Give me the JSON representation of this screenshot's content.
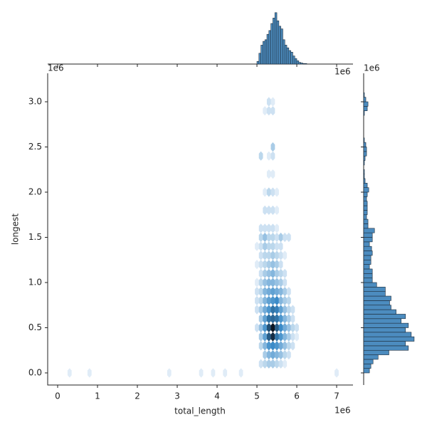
{
  "chart_data": {
    "type": "hexbin",
    "x_label": "total_length",
    "y_label": "longest",
    "x_offset_label": "1e6",
    "y_offset_label": "1e6",
    "xlim": [
      -0.25,
      7.41
    ],
    "ylim": [
      -0.134,
      3.315
    ],
    "xticks": [
      0,
      1,
      2,
      3,
      4,
      5,
      6,
      7
    ],
    "yticks": [
      {
        "value": 0,
        "label": "0.0"
      },
      {
        "value": 0.5,
        "label": "0.5"
      },
      {
        "value": 1,
        "label": "1.0"
      },
      {
        "value": 1.5,
        "label": "1.5"
      },
      {
        "value": 2,
        "label": "2.0"
      },
      {
        "value": 2.5,
        "label": "2.5"
      },
      {
        "value": 3,
        "label": "3.0"
      }
    ],
    "cmap": [
      "#f2f7fc",
      "#3b8bc8",
      "#0b1623"
    ],
    "hexbins": [
      [
        5.1,
        0.1,
        2
      ],
      [
        5.2,
        0.1,
        3
      ],
      [
        5.3,
        0.1,
        4
      ],
      [
        5.4,
        0.1,
        4
      ],
      [
        5.5,
        0.1,
        3
      ],
      [
        5.6,
        0.1,
        2
      ],
      [
        5.7,
        0.1,
        1
      ],
      [
        5.2,
        0.2,
        4
      ],
      [
        5.3,
        0.2,
        6
      ],
      [
        5.4,
        0.2,
        7
      ],
      [
        5.5,
        0.2,
        6
      ],
      [
        5.6,
        0.2,
        5
      ],
      [
        5.7,
        0.2,
        3
      ],
      [
        5.8,
        0.2,
        2
      ],
      [
        5.1,
        0.3,
        3
      ],
      [
        5.2,
        0.3,
        6
      ],
      [
        5.3,
        0.3,
        9
      ],
      [
        5.4,
        0.3,
        10
      ],
      [
        5.5,
        0.3,
        9
      ],
      [
        5.6,
        0.3,
        7
      ],
      [
        5.7,
        0.3,
        5
      ],
      [
        5.8,
        0.3,
        3
      ],
      [
        5.9,
        0.3,
        2
      ],
      [
        5.1,
        0.4,
        4
      ],
      [
        5.2,
        0.4,
        8
      ],
      [
        5.3,
        0.4,
        14
      ],
      [
        5.4,
        0.4,
        18
      ],
      [
        5.5,
        0.4,
        12
      ],
      [
        5.6,
        0.4,
        9
      ],
      [
        5.7,
        0.4,
        6
      ],
      [
        5.8,
        0.4,
        4
      ],
      [
        5.9,
        0.4,
        2
      ],
      [
        6.0,
        0.4,
        1
      ],
      [
        5.0,
        0.5,
        2
      ],
      [
        5.1,
        0.5,
        5
      ],
      [
        5.2,
        0.5,
        9
      ],
      [
        5.3,
        0.5,
        15
      ],
      [
        5.4,
        0.5,
        20
      ],
      [
        5.5,
        0.5,
        14
      ],
      [
        5.6,
        0.5,
        10
      ],
      [
        5.7,
        0.5,
        7
      ],
      [
        5.8,
        0.5,
        5
      ],
      [
        5.9,
        0.5,
        3
      ],
      [
        6.0,
        0.5,
        2
      ],
      [
        5.1,
        0.6,
        4
      ],
      [
        5.2,
        0.6,
        8
      ],
      [
        5.3,
        0.6,
        12
      ],
      [
        5.4,
        0.6,
        13
      ],
      [
        5.5,
        0.6,
        12
      ],
      [
        5.6,
        0.6,
        9
      ],
      [
        5.7,
        0.6,
        6
      ],
      [
        5.8,
        0.6,
        4
      ],
      [
        5.9,
        0.6,
        2
      ],
      [
        5.0,
        0.7,
        2
      ],
      [
        5.1,
        0.7,
        4
      ],
      [
        5.2,
        0.7,
        7
      ],
      [
        5.3,
        0.7,
        9
      ],
      [
        5.4,
        0.7,
        12
      ],
      [
        5.5,
        0.7,
        11
      ],
      [
        5.6,
        0.7,
        8
      ],
      [
        5.7,
        0.7,
        5
      ],
      [
        5.8,
        0.7,
        3
      ],
      [
        5.9,
        0.7,
        2
      ],
      [
        5.0,
        0.8,
        2
      ],
      [
        5.1,
        0.8,
        3
      ],
      [
        5.2,
        0.8,
        6
      ],
      [
        5.3,
        0.8,
        8
      ],
      [
        5.4,
        0.8,
        9
      ],
      [
        5.5,
        0.8,
        10
      ],
      [
        5.6,
        0.8,
        6
      ],
      [
        5.7,
        0.8,
        4
      ],
      [
        5.8,
        0.8,
        3
      ],
      [
        5.0,
        0.9,
        2
      ],
      [
        5.1,
        0.9,
        3
      ],
      [
        5.2,
        0.9,
        6
      ],
      [
        5.3,
        0.9,
        7
      ],
      [
        5.4,
        0.9,
        8
      ],
      [
        5.5,
        0.9,
        7
      ],
      [
        5.6,
        0.9,
        6
      ],
      [
        5.7,
        0.9,
        4
      ],
      [
        5.8,
        0.9,
        2
      ],
      [
        5.0,
        1.0,
        1
      ],
      [
        5.1,
        1.0,
        3
      ],
      [
        5.2,
        1.0,
        5
      ],
      [
        5.3,
        1.0,
        6
      ],
      [
        5.4,
        1.0,
        6
      ],
      [
        5.5,
        1.0,
        5
      ],
      [
        5.6,
        1.0,
        4
      ],
      [
        5.7,
        1.0,
        2
      ],
      [
        5.1,
        1.1,
        2
      ],
      [
        5.2,
        1.1,
        4
      ],
      [
        5.3,
        1.1,
        5
      ],
      [
        5.4,
        1.1,
        6
      ],
      [
        5.5,
        1.1,
        4
      ],
      [
        5.6,
        1.1,
        3
      ],
      [
        5.7,
        1.1,
        2
      ],
      [
        5.0,
        1.2,
        1
      ],
      [
        5.1,
        1.2,
        2
      ],
      [
        5.2,
        1.2,
        3
      ],
      [
        5.3,
        1.2,
        4
      ],
      [
        5.4,
        1.2,
        5
      ],
      [
        5.5,
        1.2,
        4
      ],
      [
        5.6,
        1.2,
        2
      ],
      [
        5.1,
        1.3,
        2
      ],
      [
        5.2,
        1.3,
        3
      ],
      [
        5.3,
        1.3,
        3
      ],
      [
        5.4,
        1.3,
        4
      ],
      [
        5.5,
        1.3,
        3
      ],
      [
        5.6,
        1.3,
        2
      ],
      [
        5.7,
        1.3,
        1
      ],
      [
        5.0,
        1.4,
        1
      ],
      [
        5.1,
        1.4,
        2
      ],
      [
        5.2,
        1.4,
        4
      ],
      [
        5.3,
        1.4,
        3
      ],
      [
        5.4,
        1.4,
        3
      ],
      [
        5.5,
        1.4,
        2
      ],
      [
        5.6,
        1.4,
        2
      ],
      [
        5.1,
        1.5,
        3
      ],
      [
        5.2,
        1.5,
        5
      ],
      [
        5.3,
        1.5,
        3
      ],
      [
        5.4,
        1.5,
        3
      ],
      [
        5.5,
        1.5,
        2
      ],
      [
        5.6,
        1.5,
        4
      ],
      [
        5.7,
        1.5,
        2
      ],
      [
        5.8,
        1.5,
        2
      ],
      [
        5.1,
        1.6,
        2
      ],
      [
        5.2,
        1.6,
        2
      ],
      [
        5.3,
        1.6,
        2
      ],
      [
        5.4,
        1.6,
        2
      ],
      [
        5.5,
        1.6,
        1
      ],
      [
        5.2,
        1.8,
        2
      ],
      [
        5.3,
        1.8,
        2
      ],
      [
        5.4,
        1.8,
        2
      ],
      [
        5.5,
        1.8,
        1
      ],
      [
        5.2,
        2.0,
        1
      ],
      [
        5.3,
        2.0,
        3
      ],
      [
        5.4,
        2.0,
        2
      ],
      [
        5.5,
        2.0,
        1
      ],
      [
        5.3,
        2.2,
        1
      ],
      [
        5.4,
        2.2,
        1
      ],
      [
        5.1,
        2.4,
        3
      ],
      [
        5.3,
        2.4,
        1
      ],
      [
        5.4,
        2.4,
        2
      ],
      [
        5.4,
        2.5,
        4
      ],
      [
        5.2,
        2.9,
        1
      ],
      [
        5.3,
        2.9,
        2
      ],
      [
        5.4,
        2.9,
        2
      ],
      [
        5.3,
        3.0,
        2
      ],
      [
        5.4,
        3.0,
        1
      ],
      [
        0.3,
        0.0,
        1
      ],
      [
        0.8,
        0.0,
        1
      ],
      [
        2.8,
        0.0,
        1
      ],
      [
        3.6,
        0.0,
        1
      ],
      [
        3.9,
        0.0,
        1
      ],
      [
        4.2,
        0.0,
        1
      ],
      [
        4.6,
        0.0,
        1
      ],
      [
        7.0,
        0.0,
        1
      ]
    ],
    "x_marginal": {
      "type": "histogram",
      "color": "#4c8cbf",
      "x_offset_label": "1e6",
      "ylim": [
        0,
        100
      ],
      "bins": [
        5.0,
        5.05,
        5.1,
        5.15,
        5.2,
        5.25,
        5.3,
        5.35,
        5.4,
        5.45,
        5.5,
        5.55,
        5.6,
        5.65,
        5.7,
        5.75,
        5.8,
        5.85,
        5.9,
        5.95,
        6.0,
        6.05,
        6.1,
        6.15,
        6.2,
        6.25
      ],
      "counts": [
        5,
        20,
        35,
        42,
        45,
        55,
        62,
        75,
        85,
        95,
        80,
        70,
        65,
        45,
        35,
        30,
        25,
        22,
        15,
        10,
        6,
        3,
        2,
        1,
        1
      ]
    },
    "y_marginal": {
      "type": "histogram",
      "color": "#4c8cbf",
      "y_offset_label": "1e6",
      "xlim": [
        0,
        75
      ],
      "bins": [
        0,
        0.05,
        0.1,
        0.15,
        0.2,
        0.25,
        0.3,
        0.35,
        0.4,
        0.45,
        0.5,
        0.55,
        0.6,
        0.65,
        0.7,
        0.75,
        0.8,
        0.85,
        0.9,
        0.95,
        1.0,
        1.05,
        1.1,
        1.15,
        1.2,
        1.25,
        1.3,
        1.35,
        1.4,
        1.45,
        1.5,
        1.55,
        1.6,
        1.65,
        1.7,
        1.75,
        1.8,
        1.85,
        1.9,
        1.95,
        2.0,
        2.05,
        2.1,
        2.15,
        2.2,
        2.25,
        2.3,
        2.35,
        2.4,
        2.45,
        2.5,
        2.55,
        2.6,
        2.65,
        2.7,
        2.75,
        2.8,
        2.85,
        2.9,
        2.95,
        3.0,
        3.05,
        3.1
      ],
      "counts": [
        8,
        10,
        13,
        20,
        35,
        62,
        58,
        70,
        66,
        58,
        62,
        52,
        58,
        45,
        38,
        36,
        38,
        30,
        30,
        18,
        12,
        12,
        12,
        8,
        10,
        10,
        12,
        11,
        8,
        12,
        12,
        15,
        6,
        6,
        4,
        5,
        5,
        5,
        4,
        5,
        7,
        5,
        2,
        1,
        1,
        0,
        1,
        2,
        4,
        4,
        3,
        1,
        0,
        0,
        0,
        0,
        0,
        1,
        5,
        6,
        3,
        1
      ]
    }
  }
}
